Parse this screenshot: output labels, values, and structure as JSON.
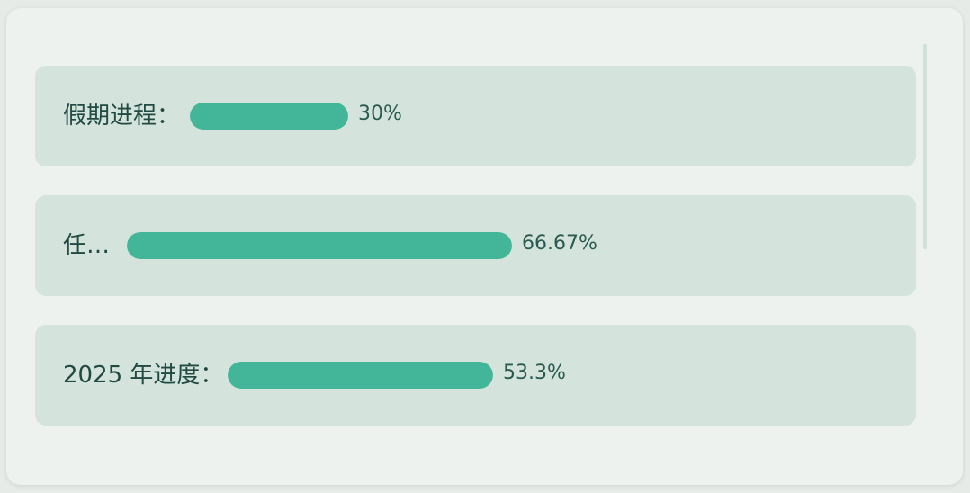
{
  "colors": {
    "card_background": "#edf2ef",
    "row_background": "#d4e4dc",
    "bar_fill": "#43b69a",
    "label_text": "#214a43",
    "percent_text": "#2a5a50"
  },
  "progress_items": [
    {
      "label": "假期进程：",
      "percent_text": "30%",
      "value_percent": 30
    },
    {
      "label": "任…",
      "percent_text": "66.67%",
      "value_percent": 66.67
    },
    {
      "label": "2025 年进度：",
      "percent_text": "53.3%",
      "value_percent": 53.3
    }
  ]
}
